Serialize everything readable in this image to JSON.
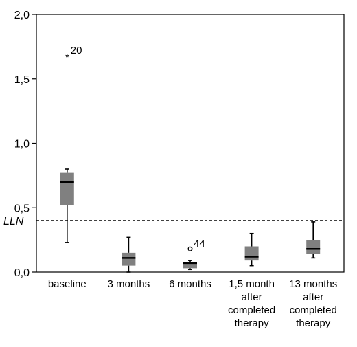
{
  "chart_data": {
    "type": "box",
    "title": "",
    "xlabel": "",
    "ylabel": "",
    "ylim": [
      0,
      2.0
    ],
    "y_ticks": [
      "0,0",
      "0,5",
      "1,0",
      "1,5",
      "2,0"
    ],
    "grid": false,
    "categories": [
      [
        "baseline"
      ],
      [
        "3 months"
      ],
      [
        "6 months"
      ],
      [
        "1,5 month",
        "after",
        "completed",
        "therapy"
      ],
      [
        "13 months",
        "after",
        "completed",
        "therapy"
      ]
    ],
    "boxes": [
      {
        "whisker_low": 0.23,
        "q1": 0.52,
        "median": 0.7,
        "q3": 0.77,
        "whisker_high": 0.8
      },
      {
        "whisker_low": 0.0,
        "q1": 0.05,
        "median": 0.11,
        "q3": 0.15,
        "whisker_high": 0.27
      },
      {
        "whisker_low": 0.02,
        "q1": 0.03,
        "median": 0.07,
        "q3": 0.08,
        "whisker_high": 0.09
      },
      {
        "whisker_low": 0.05,
        "q1": 0.09,
        "median": 0.12,
        "q3": 0.2,
        "whisker_high": 0.3
      },
      {
        "whisker_low": 0.11,
        "q1": 0.14,
        "median": 0.18,
        "q3": 0.25,
        "whisker_high": 0.39
      }
    ],
    "outliers": [
      {
        "category": 0,
        "value": 1.68,
        "marker": "star",
        "label": "20"
      },
      {
        "category": 2,
        "value": 0.18,
        "marker": "circle",
        "label": "44"
      }
    ],
    "reference_line": {
      "label": "LLN",
      "value": 0.4,
      "style": "dashed"
    },
    "colors": {
      "box": "#808080",
      "median": "#000000",
      "axis": "#000000"
    }
  }
}
